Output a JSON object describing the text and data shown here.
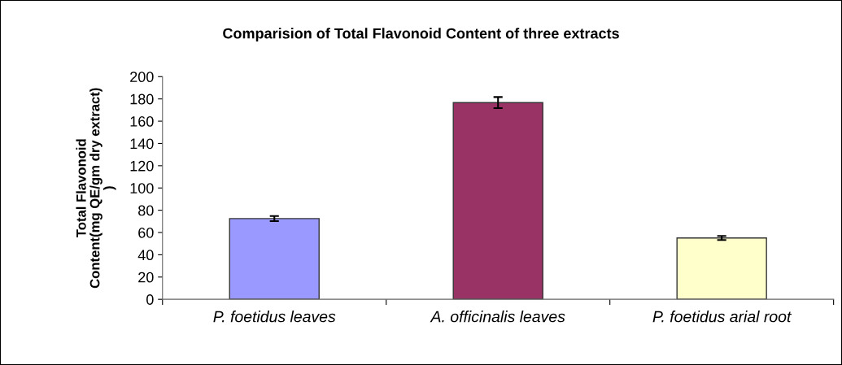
{
  "chart_data": {
    "type": "bar",
    "title": "Comparision of Total Flavonoid Content of three extracts",
    "ylabel": "Total Flavonoid\nContent(mg QE/gm dry extract)\n)",
    "categories": [
      "P. foetidus leaves",
      "A. officinalis leaves",
      "P. foetidus arial root"
    ],
    "values": [
      72.5,
      176.7,
      55.1
    ],
    "errors": [
      2.3,
      5,
      1.8
    ],
    "colors": [
      "#9999ff",
      "#993366",
      "#ffffcc"
    ],
    "ylim": [
      0,
      200
    ],
    "yticks": [
      0,
      20,
      40,
      60,
      80,
      100,
      120,
      140,
      160,
      180,
      200
    ],
    "grid": false,
    "legend": false
  }
}
